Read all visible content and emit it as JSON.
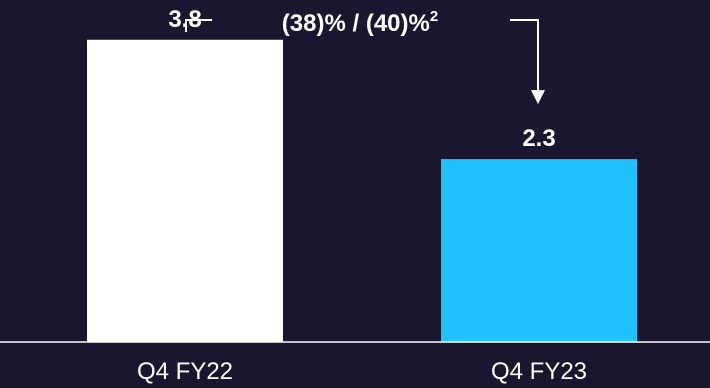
{
  "chart_data": {
    "type": "bar",
    "title": "",
    "xlabel": "",
    "ylabel": "",
    "categories": [
      "Q4 FY22",
      "Q4 FY23"
    ],
    "values": [
      3.8,
      2.3
    ],
    "value_labels": [
      "3.8",
      "2.3"
    ],
    "ylim": [
      0,
      4.3
    ],
    "grid": false,
    "colors": [
      "#ffffff",
      "#21c1ff"
    ],
    "annotation": {
      "text": "(38)% / (40)%",
      "superscript": "2",
      "from": "Q4 FY22",
      "to": "Q4 FY23"
    }
  }
}
